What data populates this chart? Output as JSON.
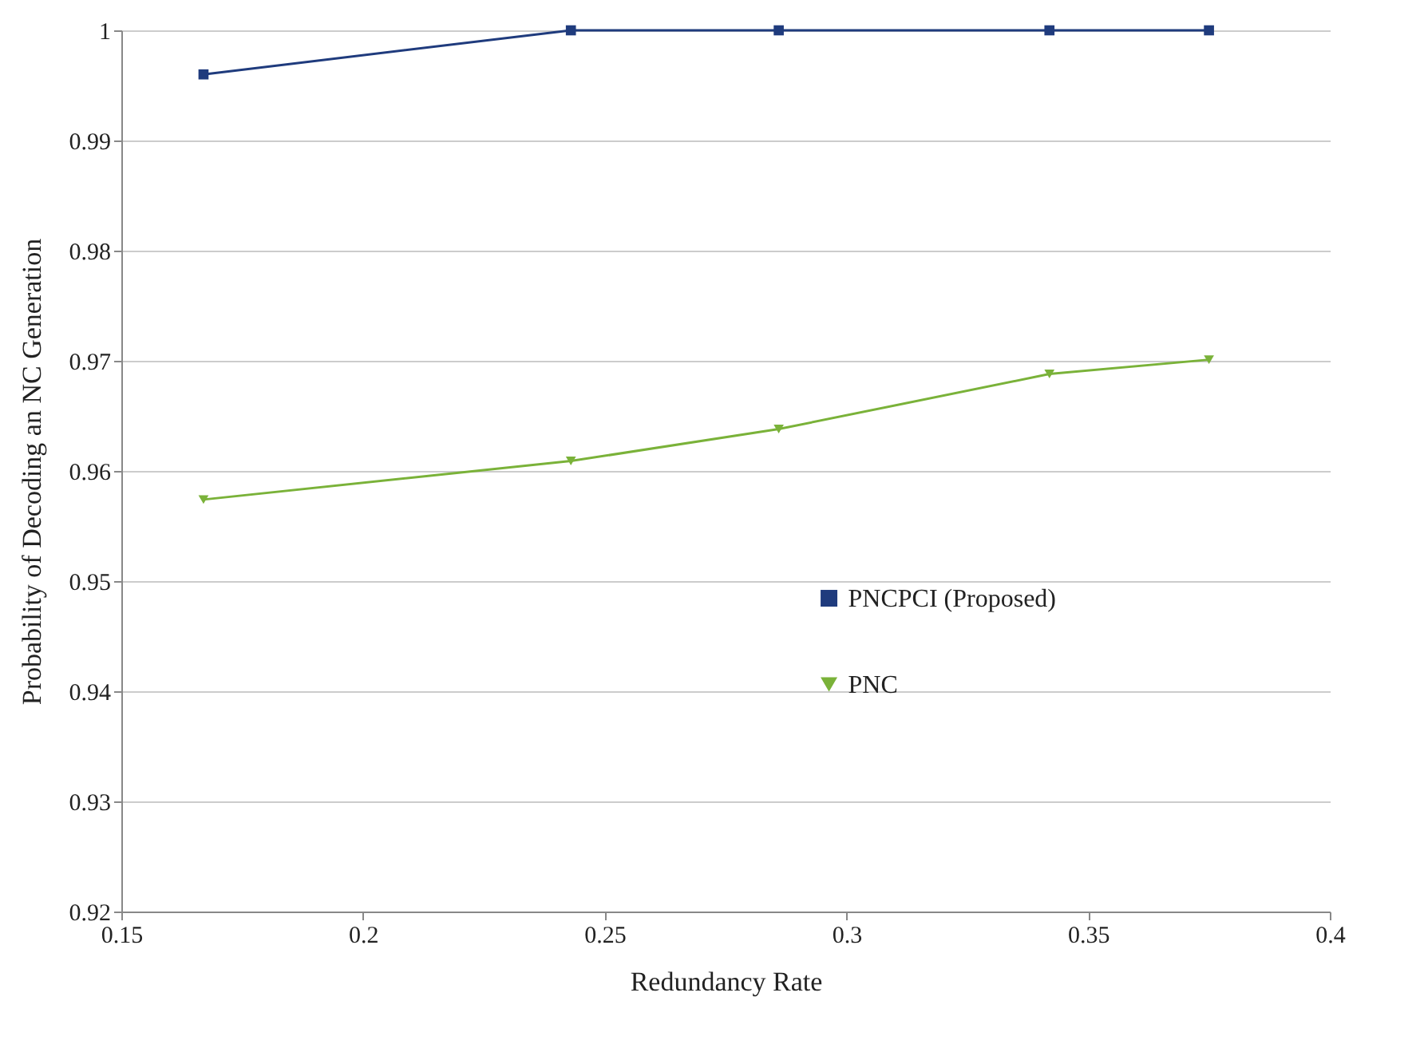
{
  "chart_data": {
    "type": "line",
    "xlabel": "Redundancy Rate",
    "ylabel": "Probability of Decoding an NC Generation",
    "xlim": [
      0.15,
      0.4
    ],
    "xticks": [
      0.15,
      0.2,
      0.25,
      0.3,
      0.35,
      0.4
    ],
    "ylim": [
      0.92,
      1
    ],
    "yticks": [
      0.92,
      0.93,
      0.94,
      0.95,
      0.96,
      0.97,
      0.98,
      0.99,
      1
    ],
    "x": [
      0.167,
      0.243,
      0.286,
      0.342,
      0.375
    ],
    "series": [
      {
        "name": "PNCPCI (Proposed)",
        "color": "#1f3b7d",
        "marker": "square",
        "values": [
          0.996,
          1,
          1,
          1,
          1
        ]
      },
      {
        "name": "PNC",
        "color": "#7ab239",
        "marker": "triangle",
        "values": [
          0.9574,
          0.9609,
          0.9638,
          0.9688,
          0.9701
        ]
      }
    ],
    "grid": "y",
    "legend": "right"
  }
}
